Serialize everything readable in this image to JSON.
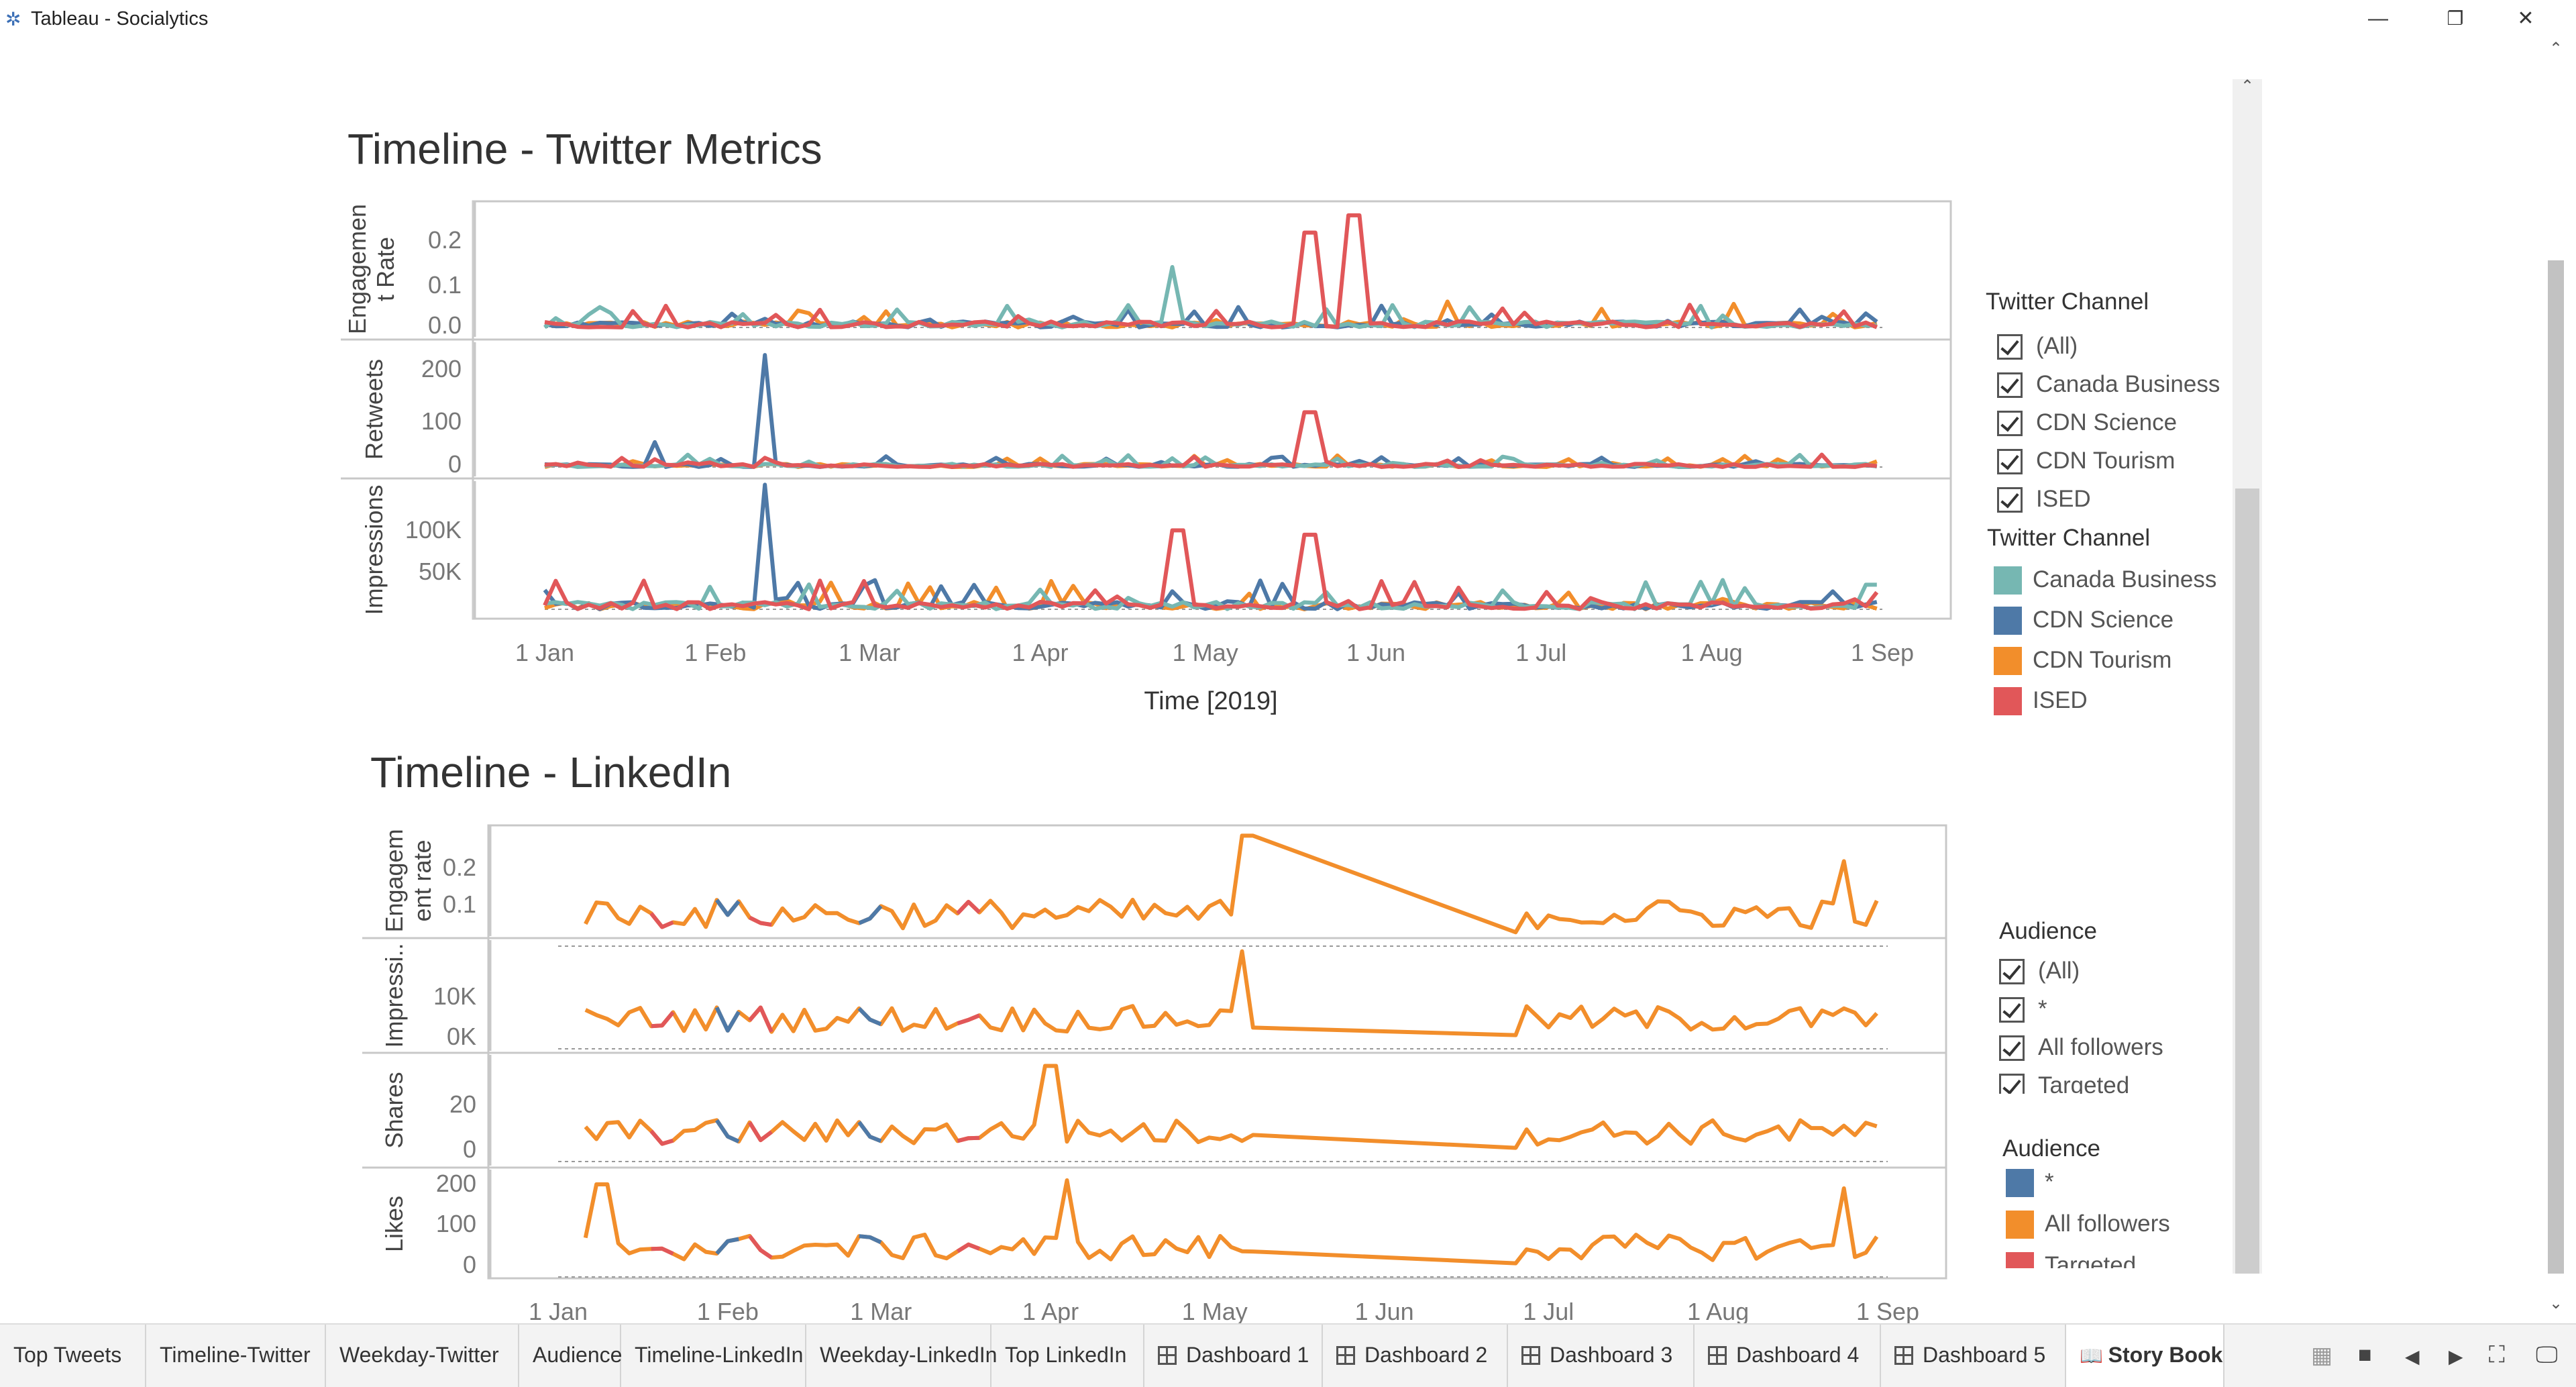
{
  "window": {
    "title": "Tableau - Socialytics",
    "minimize": "—",
    "restore": "❐",
    "close": "✕"
  },
  "twitter": {
    "title": "Timeline - Twitter Metrics",
    "xlabel": "Time [2019]",
    "panes": [
      {
        "label": [
          "Engagemen",
          "t Rate"
        ],
        "ticks": [
          "0.2",
          "0.1",
          "0.0"
        ]
      },
      {
        "label": [
          "Retweets"
        ],
        "ticks": [
          "200",
          "100",
          "0"
        ]
      },
      {
        "label": [
          "Impressions"
        ],
        "ticks": [
          "100K",
          "50K"
        ]
      }
    ],
    "xticks": [
      "1 Jan",
      "1 Feb",
      "1 Mar",
      "1 Apr",
      "1 May",
      "1 Jun",
      "1 Jul",
      "1 Aug",
      "1 Sep"
    ]
  },
  "twitter_filter": {
    "title": "Twitter Channel",
    "items": [
      "(All)",
      "Canada Business",
      "CDN Science",
      "CDN Tourism",
      "ISED"
    ]
  },
  "twitter_legend": {
    "title": "Twitter Channel",
    "items": [
      {
        "label": "Canada Business",
        "color": "#76b7b2"
      },
      {
        "label": "CDN Science",
        "color": "#4e79a7"
      },
      {
        "label": "CDN Tourism",
        "color": "#f28e2b"
      },
      {
        "label": "ISED",
        "color": "#e15759"
      }
    ]
  },
  "linkedin": {
    "title": "Timeline - LinkedIn",
    "panes": [
      {
        "label": [
          "Engagem",
          "ent rate"
        ],
        "ticks": [
          "0.2",
          "0.1"
        ]
      },
      {
        "label": [
          "Impressi.."
        ],
        "ticks": [
          "10K",
          "0K"
        ]
      },
      {
        "label": [
          "Shares"
        ],
        "ticks": [
          "20",
          "0"
        ]
      },
      {
        "label": [
          "Likes"
        ],
        "ticks": [
          "200",
          "100",
          "0"
        ]
      }
    ],
    "xticks": [
      "1 Jan",
      "1 Feb",
      "1 Mar",
      "1 Apr",
      "1 May",
      "1 Jun",
      "1 Jul",
      "1 Aug",
      "1 Sep"
    ]
  },
  "audience_filter": {
    "title": "Audience",
    "items": [
      "(All)",
      "*",
      "All followers",
      "Targeted"
    ]
  },
  "audience_legend": {
    "title": "Audience",
    "items": [
      {
        "label": "*",
        "color": "#4e79a7"
      },
      {
        "label": "All followers",
        "color": "#f28e2b"
      },
      {
        "label": "Targeted",
        "color": "#e15759"
      }
    ]
  },
  "tabs": [
    "Top Tweets",
    "Timeline-Twitter",
    "Weekday-Twitter",
    "Audience",
    "Timeline-LinkedIn",
    "Weekday-LinkedIn",
    "Top LinkedIn",
    "Dashboard 1",
    "Dashboard 2",
    "Dashboard 3",
    "Dashboard 4",
    "Dashboard 5",
    "Story Book"
  ],
  "chart_data": [
    {
      "type": "line",
      "title": "Timeline - Twitter Metrics",
      "xlabel": "Time [2019]",
      "x": [
        "1 Jan",
        "1 Feb",
        "1 Mar",
        "1 Apr",
        "1 May",
        "1 Jun",
        "1 Jul",
        "1 Aug",
        "1 Sep"
      ],
      "panes": [
        {
          "measure": "Engagement Rate",
          "ylim": [
            0,
            0.28
          ],
          "series": [
            {
              "name": "Canada Business",
              "peaks": [
                [
                  "25 Apr",
                  0.14
                ],
                [
                  "26 Mar",
                  0.05
                ]
              ]
            },
            {
              "name": "CDN Science",
              "peaks": [
                [
                  "10 Feb",
                  0.02
                ]
              ]
            },
            {
              "name": "CDN Tourism",
              "peaks": [
                [
                  "14 Jun",
                  0.06
                ]
              ]
            },
            {
              "name": "ISED",
              "peaks": [
                [
                  "20 May",
                  0.22
                ],
                [
                  "28 May",
                  0.26
                ]
              ]
            }
          ]
        },
        {
          "measure": "Retweets",
          "ylim": [
            0,
            240
          ],
          "series": [
            {
              "name": "CDN Science",
              "peaks": [
                [
                  "10 Feb",
                  225
                ],
                [
                  "21 Jan",
                  50
                ]
              ]
            },
            {
              "name": "ISED",
              "peaks": [
                [
                  "20 May",
                  110
                ]
              ]
            }
          ]
        },
        {
          "measure": "Impressions",
          "ylim": [
            0,
            140000
          ],
          "series": [
            {
              "name": "CDN Science",
              "peaks": [
                [
                  "10 Feb",
                  142000
                ]
              ]
            },
            {
              "name": "ISED",
              "peaks": [
                [
                  "26 Apr",
                  90000
                ],
                [
                  "20 May",
                  85000
                ]
              ]
            },
            {
              "name": "Canada Business",
              "peaks": [
                [
                  "30 Aug",
                  28000
                ]
              ]
            }
          ]
        }
      ]
    },
    {
      "type": "line",
      "title": "Timeline - LinkedIn",
      "x": [
        "1 Jan",
        "1 Feb",
        "1 Mar",
        "1 Apr",
        "1 May",
        "1 Jun",
        "1 Jul",
        "1 Aug",
        "1 Sep"
      ],
      "panes": [
        {
          "measure": "Engagement rate",
          "ylim": [
            0,
            0.28
          ],
          "series": [
            {
              "name": "All followers",
              "peaks": [
                [
                  "7 May",
                  0.27
                ],
                [
                  "24 Aug",
                  0.2
                ]
              ]
            }
          ]
        },
        {
          "measure": "Impressions",
          "ylim": [
            -2000,
            20000
          ],
          "series": [
            {
              "name": "All followers",
              "peaks": [
                [
                  "6 May",
                  19000
                ]
              ]
            }
          ]
        },
        {
          "measure": "Shares",
          "ylim": [
            -3,
            40
          ],
          "series": [
            {
              "name": "All followers",
              "peaks": [
                [
                  "1 Apr",
                  38
                ]
              ]
            }
          ]
        },
        {
          "measure": "Likes",
          "ylim": [
            -10,
            220
          ],
          "series": [
            {
              "name": "All followers",
              "peaks": [
                [
                  "4 Apr",
                  210
                ],
                [
                  "9 Jan",
                  200
                ],
                [
                  "24 Aug",
                  190
                ]
              ]
            }
          ]
        }
      ]
    }
  ]
}
